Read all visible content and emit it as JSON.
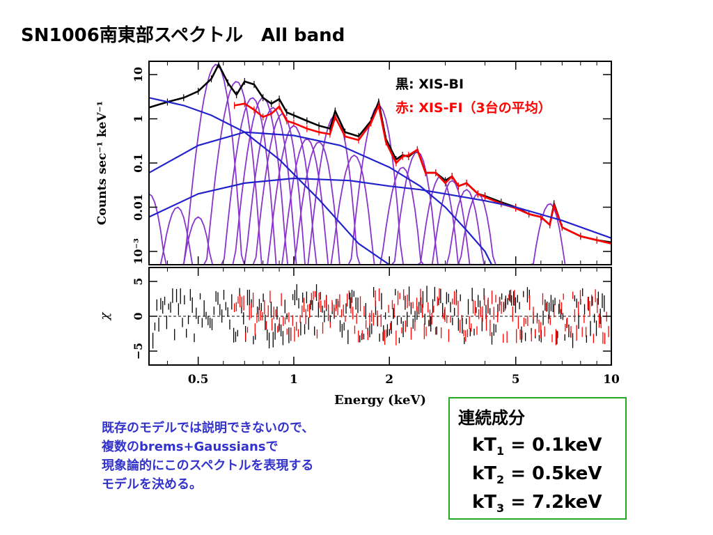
{
  "title": "SN1006南東部スペクトル　All band",
  "legend": [
    {
      "label": "黒: XIS-BI",
      "color": "#000000"
    },
    {
      "label": "赤: XIS-FI（3台の平均）",
      "color": "#ff0000"
    }
  ],
  "note_lines": [
    "既存のモデルでは説明できないので、",
    "複数のbrems+Gaussiansで",
    "現象論的にこのスペクトルを表現する",
    "モデルを決める。"
  ],
  "continuum_box": {
    "title": "連続成分",
    "components": [
      {
        "label": "kT",
        "sub": "1",
        "value": " = 0.1keV"
      },
      {
        "label": "kT",
        "sub": "2",
        "value": " = 0.5keV"
      },
      {
        "label": "kT",
        "sub": "3",
        "value": " = 7.2keV"
      }
    ],
    "border_color": "#22aa22"
  },
  "chart_data": {
    "type": "line",
    "xlabel": "Energy (keV)",
    "xscale": "log",
    "xlim": [
      0.35,
      10
    ],
    "xticks": [
      0.5,
      1,
      2,
      5,
      10
    ],
    "xtick_labels": [
      "0.5",
      "1",
      "2",
      "5",
      "10"
    ],
    "panels": [
      {
        "name": "spectrum",
        "ylabel": "Counts sec⁻¹ keV⁻¹",
        "yscale": "log",
        "ylim": [
          0.0005,
          20
        ],
        "yticks": [
          10,
          1,
          0.1,
          0.01,
          0.001
        ],
        "ytick_labels": [
          "10",
          "1",
          "0.1",
          "0.01",
          "10⁻³"
        ],
        "series": [
          {
            "name": "XIS-BI",
            "color": "#000000",
            "x": [
              0.35,
              0.4,
              0.45,
              0.5,
              0.55,
              0.58,
              0.62,
              0.66,
              0.7,
              0.75,
              0.8,
              0.85,
              0.9,
              0.95,
              1.0,
              1.1,
              1.2,
              1.3,
              1.35,
              1.45,
              1.6,
              1.75,
              1.85,
              1.95,
              2.1,
              2.2,
              2.3,
              2.45,
              2.6,
              2.8,
              3.0,
              3.15,
              3.3,
              3.5,
              3.8,
              4.0,
              4.5,
              5.0,
              5.5,
              6.0,
              6.4,
              6.6,
              7.0,
              8.0,
              9.0,
              10.0
            ],
            "y": [
              1.8,
              2.4,
              3.0,
              4.2,
              8,
              17,
              6.5,
              3.5,
              7,
              6,
              3,
              2.2,
              2.8,
              1.4,
              1.2,
              0.9,
              0.7,
              0.6,
              1.5,
              0.5,
              0.4,
              0.9,
              2.4,
              0.35,
              0.12,
              0.15,
              0.14,
              0.2,
              0.06,
              0.06,
              0.04,
              0.05,
              0.03,
              0.035,
              0.02,
              0.018,
              0.013,
              0.01,
              0.007,
              0.006,
              0.004,
              0.012,
              0.0035,
              0.0022,
              0.0018,
              0.0016
            ]
          },
          {
            "name": "XIS-FI",
            "color": "#ff0000",
            "x": [
              0.65,
              0.7,
              0.75,
              0.8,
              0.85,
              0.9,
              0.95,
              1.0,
              1.1,
              1.2,
              1.3,
              1.35,
              1.45,
              1.6,
              1.75,
              1.85,
              1.95,
              2.1,
              2.2,
              2.3,
              2.45,
              2.6,
              2.8,
              3.0,
              3.15,
              3.3,
              3.5,
              3.8,
              4.0,
              4.5,
              5.0,
              5.5,
              6.0,
              6.4,
              6.6,
              7.0,
              8.0,
              9.0,
              10.0
            ],
            "y": [
              2.0,
              2.2,
              1.6,
              1.1,
              1.3,
              1.9,
              0.9,
              0.8,
              0.6,
              0.5,
              0.45,
              1.1,
              0.4,
              0.33,
              0.8,
              2.0,
              0.3,
              0.1,
              0.14,
              0.15,
              0.2,
              0.06,
              0.06,
              0.035,
              0.05,
              0.03,
              0.035,
              0.02,
              0.017,
              0.012,
              0.0095,
              0.007,
              0.006,
              0.004,
              0.011,
              0.0035,
              0.0022,
              0.0018,
              0.0015
            ]
          },
          {
            "name": "",
            "color": "#2222cc",
            "x": [
              0.35,
              0.45,
              0.55,
              0.7,
              0.9,
              1.2,
              1.6,
              2.0,
              2.5,
              3.0,
              3.5,
              4.0
            ],
            "y": [
              3.0,
              2.0,
              1.2,
              0.5,
              0.12,
              0.015,
              0.0015,
              0.0005,
              0.0005,
              0.0005,
              0.0005,
              0.0005
            ]
          },
          {
            "name": "",
            "color": "#2222cc",
            "x": [
              0.35,
              0.5,
              0.7,
              1.0,
              1.4,
              2.0,
              2.5,
              3.0,
              3.5,
              4.0,
              4.2
            ],
            "y": [
              0.06,
              0.25,
              0.5,
              0.42,
              0.25,
              0.08,
              0.03,
              0.01,
              0.003,
              0.001,
              0.0005
            ]
          },
          {
            "name": "",
            "color": "#2222cc",
            "x": [
              0.35,
              0.5,
              0.7,
              1.0,
              1.5,
              2.0,
              2.5,
              3.0,
              4.0,
              5.0,
              7.0,
              10.0
            ],
            "y": [
              0.006,
              0.02,
              0.035,
              0.045,
              0.04,
              0.03,
              0.025,
              0.02,
              0.014,
              0.01,
              0.005,
              0.002
            ]
          }
        ],
        "line_components": [
          {
            "center": 0.35,
            "peak": 0.02
          },
          {
            "center": 0.43,
            "peak": 0.01
          },
          {
            "center": 0.5,
            "peak": 0.006
          },
          {
            "center": 0.57,
            "peak": 17
          },
          {
            "center": 0.66,
            "peak": 7
          },
          {
            "center": 0.74,
            "peak": 3
          },
          {
            "center": 0.8,
            "peak": 3
          },
          {
            "center": 0.86,
            "peak": 1.8
          },
          {
            "center": 0.92,
            "peak": 1.3
          },
          {
            "center": 1.0,
            "peak": 0.7
          },
          {
            "center": 1.1,
            "peak": 0.35
          },
          {
            "center": 1.2,
            "peak": 0.3
          },
          {
            "center": 1.35,
            "peak": 1.2
          },
          {
            "center": 1.55,
            "peak": 0.15
          },
          {
            "center": 1.85,
            "peak": 2.0
          },
          {
            "center": 2.2,
            "peak": 0.08
          },
          {
            "center": 2.45,
            "peak": 0.18
          },
          {
            "center": 2.9,
            "peak": 0.05
          },
          {
            "center": 3.15,
            "peak": 0.04
          },
          {
            "center": 3.5,
            "peak": 0.025
          },
          {
            "center": 3.8,
            "peak": 0.02
          },
          {
            "center": 6.4,
            "peak": 0.012
          }
        ]
      },
      {
        "name": "residuals",
        "ylabel": "χ",
        "ylim": [
          -7,
          7
        ],
        "yticks": [
          5,
          0,
          -5
        ],
        "ytick_labels": [
          "5",
          "0",
          "−5"
        ],
        "series": [
          {
            "name": "XIS-BI",
            "color": "#000000"
          },
          {
            "name": "XIS-FI",
            "color": "#ff0000"
          }
        ]
      }
    ]
  }
}
